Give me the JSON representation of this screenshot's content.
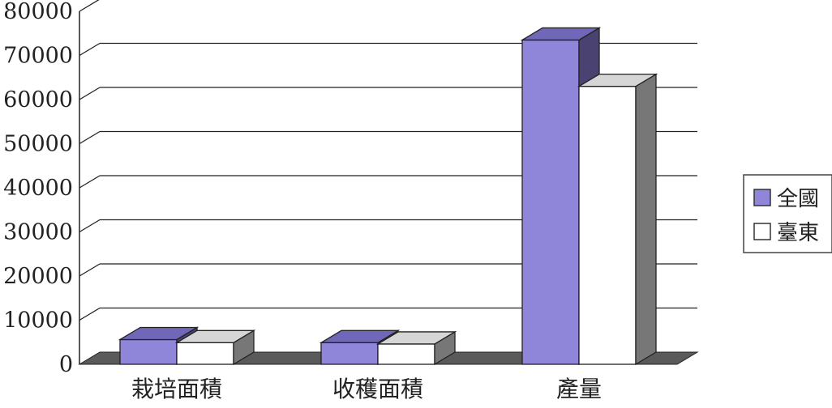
{
  "chart_data": {
    "type": "bar",
    "categories": [
      "栽培面積",
      "收穫面積",
      "產量"
    ],
    "series": [
      {
        "name": "全國",
        "values": [
          5600,
          4900,
          73500
        ],
        "color": "#8f86d9"
      },
      {
        "name": "臺東",
        "values": [
          4900,
          4600,
          63000
        ],
        "color": "#ffffff"
      }
    ],
    "ylim": [
      0,
      80000
    ],
    "yticks": [
      "0",
      "10000",
      "20000",
      "30000",
      "40000",
      "50000",
      "60000",
      "70000",
      "80000"
    ],
    "grid": true,
    "legend_position": "right",
    "style": "3d"
  }
}
